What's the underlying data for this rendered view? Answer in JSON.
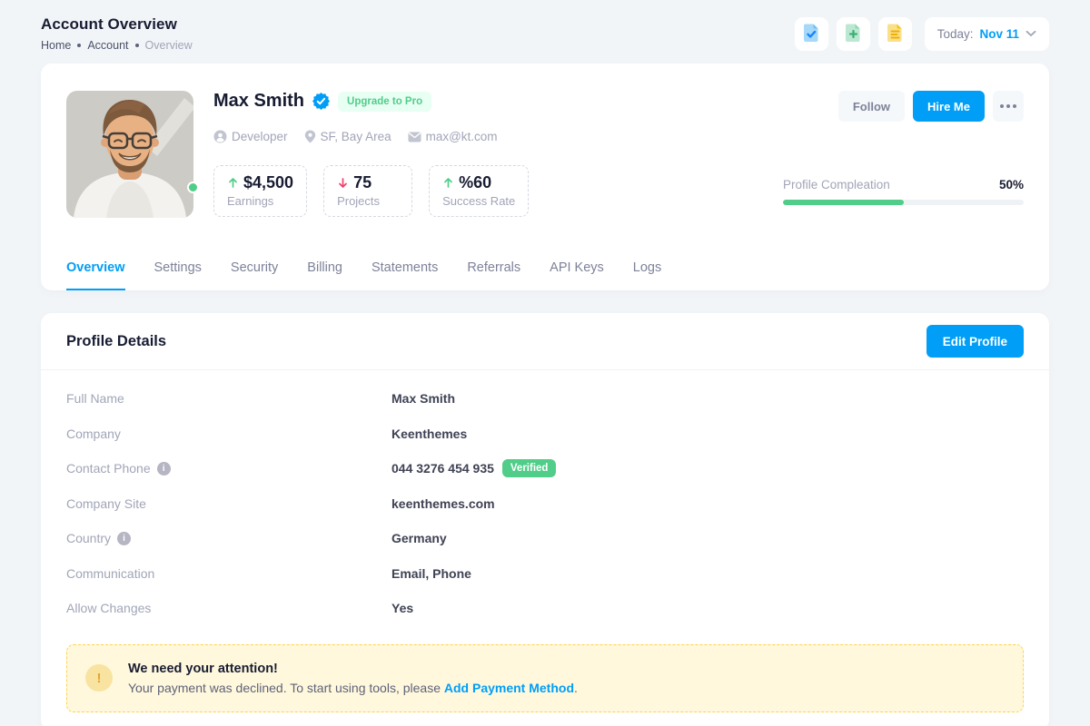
{
  "page": {
    "title": "Account Overview",
    "breadcrumb": {
      "items": [
        "Home",
        "Account",
        "Overview"
      ]
    }
  },
  "toolbar": {
    "icons": [
      "file-check-icon",
      "file-plus-icon",
      "file-lines-icon"
    ],
    "date_label": "Today:",
    "date_value": "Nov 11"
  },
  "profile": {
    "name": "Max Smith",
    "verified_icon": "verified-badge-icon",
    "upgrade_badge": "Upgrade to Pro",
    "meta": [
      {
        "icon": "user-icon",
        "label": "Developer"
      },
      {
        "icon": "map-pin-icon",
        "label": "SF, Bay Area"
      },
      {
        "icon": "envelope-icon",
        "label": "max@kt.com"
      }
    ],
    "actions": {
      "follow": "Follow",
      "hire": "Hire Me",
      "more": "ellipsis-icon"
    },
    "stats": [
      {
        "trend": "up",
        "value": "$4,500",
        "label": "Earnings"
      },
      {
        "trend": "down",
        "value": "75",
        "label": "Projects"
      },
      {
        "trend": "up",
        "value": "%60",
        "label": "Success Rate"
      }
    ],
    "progress": {
      "label": "Profile Compleation",
      "value": "50%",
      "width": "50%"
    }
  },
  "tabs": {
    "items": [
      {
        "label": "Overview",
        "active": true
      },
      {
        "label": "Settings",
        "active": false
      },
      {
        "label": "Security",
        "active": false
      },
      {
        "label": "Billing",
        "active": false
      },
      {
        "label": "Statements",
        "active": false
      },
      {
        "label": "Referrals",
        "active": false
      },
      {
        "label": "API Keys",
        "active": false
      },
      {
        "label": "Logs",
        "active": false
      }
    ]
  },
  "details": {
    "title": "Profile Details",
    "edit_button": "Edit Profile",
    "rows": [
      {
        "label": "Full Name",
        "value": "Max Smith"
      },
      {
        "label": "Company",
        "value": "Keenthemes"
      },
      {
        "label": "Contact Phone",
        "value": "044 3276 454 935",
        "badge": "Verified",
        "info": true
      },
      {
        "label": "Company Site",
        "value": "keenthemes.com"
      },
      {
        "label": "Country",
        "value": "Germany",
        "info": true
      },
      {
        "label": "Communication",
        "value": "Email, Phone"
      },
      {
        "label": "Allow Changes",
        "value": "Yes"
      }
    ]
  },
  "alert": {
    "icon": "exclamation-icon",
    "title": "We need your attention!",
    "message_prefix": "Your payment was declined. To start using tools, please ",
    "link": "Add Payment Method",
    "suffix": "."
  },
  "colors": {
    "primary": "#009EF7",
    "success": "#50CD89",
    "success_light": "#E8FFF3",
    "danger": "#F1416C",
    "warning_border": "#FFD24D",
    "warning_bg": "#FFF8DD",
    "dark": "#181C32",
    "muted": "#A1A5B7"
  }
}
